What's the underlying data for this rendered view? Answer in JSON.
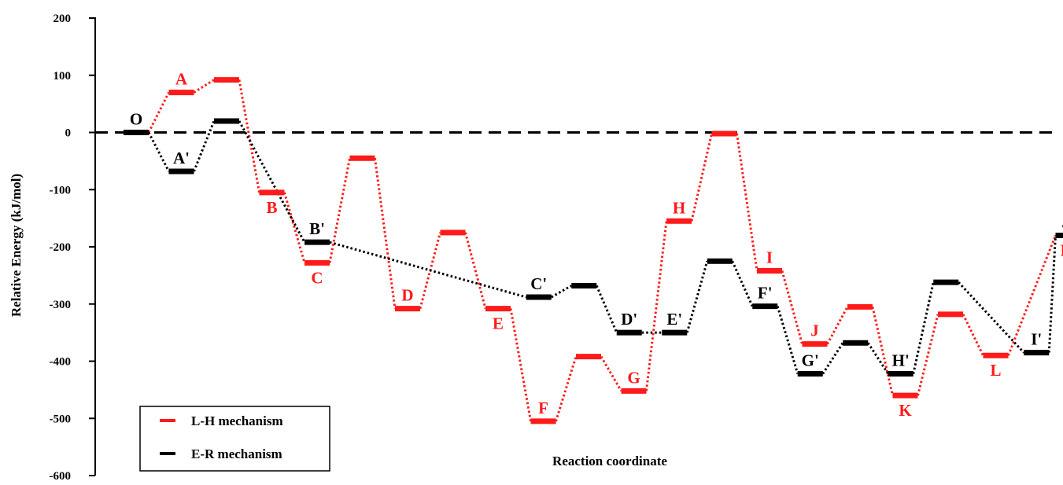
{
  "chart_data": {
    "type": "line",
    "title": "",
    "xlabel": "Reaction coordinate",
    "ylabel": "Relative Energy (kJ/mol)",
    "ylim": [
      -600,
      200
    ],
    "yticks": [
      200,
      100,
      0,
      -100,
      -200,
      -300,
      -400,
      -500,
      -600
    ],
    "reference_line": {
      "y": 0,
      "style": "dashed"
    },
    "grid": false,
    "legend_position": "bottom-left",
    "colors": {
      "lh": "#ff1a1a",
      "er": "#000000"
    },
    "series": [
      {
        "name": "L-H mechanism",
        "key": "lh",
        "color": "#ff1a1a",
        "points": [
          {
            "x": 1.0,
            "y": 0
          },
          {
            "x": 2.0,
            "y": 70
          },
          {
            "x": 3.0,
            "y": 92
          },
          {
            "x": 4.0,
            "y": -105
          },
          {
            "x": 5.0,
            "y": -228
          },
          {
            "x": 6.0,
            "y": -45
          },
          {
            "x": 7.0,
            "y": -308
          },
          {
            "x": 8.0,
            "y": -175
          },
          {
            "x": 9.0,
            "y": -308
          },
          {
            "x": 10.0,
            "y": -505
          },
          {
            "x": 11.0,
            "y": -392
          },
          {
            "x": 12.0,
            "y": -452
          },
          {
            "x": 13.0,
            "y": -155
          },
          {
            "x": 14.0,
            "y": -2
          },
          {
            "x": 15.0,
            "y": -242
          },
          {
            "x": 16.0,
            "y": -370
          },
          {
            "x": 17.0,
            "y": -305
          },
          {
            "x": 18.0,
            "y": -460
          },
          {
            "x": 19.0,
            "y": -318
          },
          {
            "x": 20.0,
            "y": -390
          },
          {
            "x": 21.6,
            "y": -180
          }
        ]
      },
      {
        "name": "E-R mechanism",
        "key": "er",
        "color": "#000000",
        "points": [
          {
            "x": 1.0,
            "y": 0
          },
          {
            "x": 2.0,
            "y": -68
          },
          {
            "x": 3.0,
            "y": 20
          },
          {
            "x": 5.0,
            "y": -192
          },
          {
            "x": 9.9,
            "y": -288
          },
          {
            "x": 10.9,
            "y": -268
          },
          {
            "x": 11.9,
            "y": -350
          },
          {
            "x": 12.9,
            "y": -350
          },
          {
            "x": 13.9,
            "y": -225
          },
          {
            "x": 14.9,
            "y": -304
          },
          {
            "x": 15.9,
            "y": -422
          },
          {
            "x": 16.9,
            "y": -368
          },
          {
            "x": 17.9,
            "y": -422
          },
          {
            "x": 18.9,
            "y": -262
          },
          {
            "x": 20.9,
            "y": -385
          },
          {
            "x": 21.6,
            "y": -180
          }
        ]
      }
    ],
    "annotations": [
      {
        "text": "O",
        "x": 1.0,
        "y": 0,
        "series": "er",
        "pos": "above"
      },
      {
        "text": "A",
        "x": 2.0,
        "y": 70,
        "series": "lh",
        "pos": "above"
      },
      {
        "text": "A'",
        "x": 2.0,
        "y": -68,
        "series": "er",
        "pos": "above"
      },
      {
        "text": "B",
        "x": 4.0,
        "y": -105,
        "series": "lh",
        "pos": "below"
      },
      {
        "text": "B'",
        "x": 5.0,
        "y": -192,
        "series": "er",
        "pos": "above"
      },
      {
        "text": "C",
        "x": 5.0,
        "y": -228,
        "series": "lh",
        "pos": "below"
      },
      {
        "text": "D",
        "x": 7.0,
        "y": -308,
        "series": "lh",
        "pos": "above"
      },
      {
        "text": "E",
        "x": 9.0,
        "y": -308,
        "series": "lh",
        "pos": "below"
      },
      {
        "text": "C'",
        "x": 9.9,
        "y": -288,
        "series": "er",
        "pos": "above"
      },
      {
        "text": "F",
        "x": 10.0,
        "y": -505,
        "series": "lh",
        "pos": "above"
      },
      {
        "text": "G",
        "x": 12.0,
        "y": -452,
        "series": "lh",
        "pos": "above"
      },
      {
        "text": "D'",
        "x": 11.9,
        "y": -350,
        "series": "er",
        "pos": "above"
      },
      {
        "text": "E'",
        "x": 12.9,
        "y": -350,
        "series": "er",
        "pos": "above"
      },
      {
        "text": "H",
        "x": 13.0,
        "y": -155,
        "series": "lh",
        "pos": "above"
      },
      {
        "text": "I",
        "x": 15.0,
        "y": -242,
        "series": "lh",
        "pos": "above"
      },
      {
        "text": "F'",
        "x": 14.9,
        "y": -304,
        "series": "er",
        "pos": "above"
      },
      {
        "text": "J",
        "x": 16.0,
        "y": -370,
        "series": "lh",
        "pos": "above"
      },
      {
        "text": "G'",
        "x": 15.9,
        "y": -422,
        "series": "er",
        "pos": "above"
      },
      {
        "text": "H'",
        "x": 17.9,
        "y": -422,
        "series": "er",
        "pos": "above"
      },
      {
        "text": "K",
        "x": 18.0,
        "y": -460,
        "series": "lh",
        "pos": "below"
      },
      {
        "text": "L",
        "x": 20.0,
        "y": -390,
        "series": "lh",
        "pos": "below"
      },
      {
        "text": "I'",
        "x": 20.9,
        "y": -385,
        "series": "er",
        "pos": "above"
      },
      {
        "text": "J'",
        "x": 21.6,
        "y": -180,
        "series": "er",
        "pos": "above"
      },
      {
        "text": "M",
        "x": 21.6,
        "y": -180,
        "series": "lh",
        "pos": "below"
      }
    ]
  }
}
